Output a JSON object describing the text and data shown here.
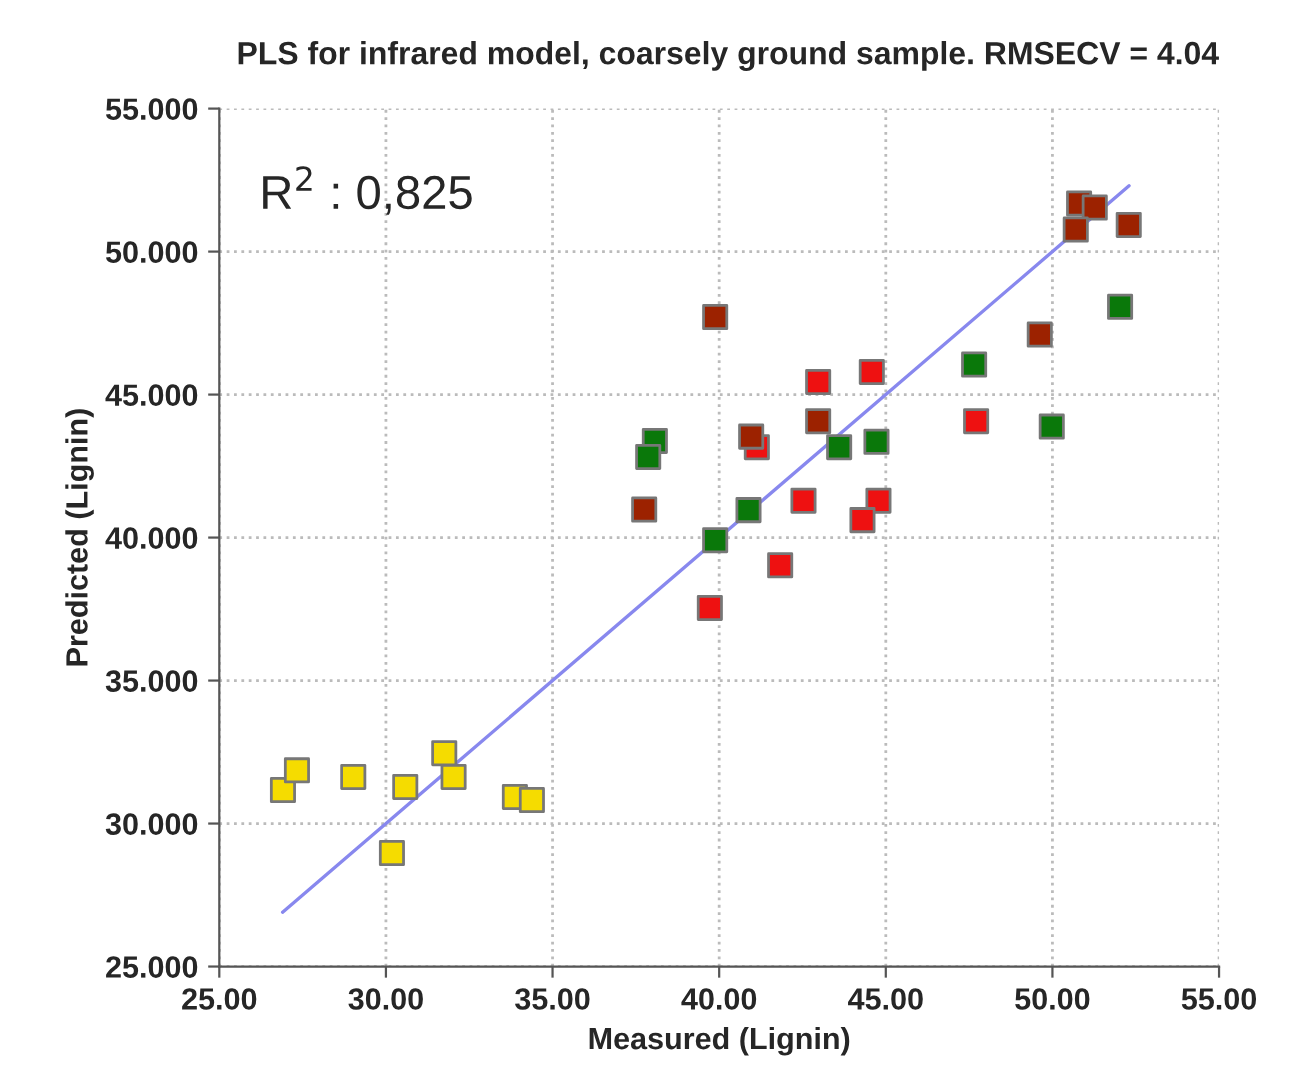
{
  "chart_data": {
    "type": "scatter",
    "title": "PLS for infrared model, coarsely ground sample. RMSECV = 4.04",
    "xlabel": "Measured (Lignin)",
    "ylabel": "Predicted (Lignin)",
    "annotations": [
      "R$^{2}$ : 0,825"
    ],
    "xlim": [
      25,
      55
    ],
    "ylim": [
      25,
      55
    ],
    "xticks": [
      {
        "value": 25,
        "label": "25.00"
      },
      {
        "value": 30,
        "label": "30.00"
      },
      {
        "value": 35,
        "label": "35.00"
      },
      {
        "value": 40,
        "label": "40.00"
      },
      {
        "value": 45,
        "label": "45.00"
      },
      {
        "value": 50,
        "label": "50.00"
      },
      {
        "value": 55,
        "label": "55.00"
      }
    ],
    "yticks": [
      {
        "value": 25,
        "label": "25.000"
      },
      {
        "value": 30,
        "label": "30.000"
      },
      {
        "value": 35,
        "label": "35.000"
      },
      {
        "value": 40,
        "label": "40.000"
      },
      {
        "value": 45,
        "label": "45.000"
      },
      {
        "value": 50,
        "label": "50.000"
      },
      {
        "value": 55,
        "label": "55.000"
      }
    ],
    "grid": true,
    "marker": "square",
    "series": [
      {
        "type": "line",
        "color": "#8888ee",
        "marker": "none",
        "x": [
          26.9,
          52.3
        ],
        "values": [
          26.9,
          52.3
        ]
      },
      {
        "color": "#f5dc00",
        "x": [
          26.91,
          27.33,
          29.02,
          30.58,
          30.18,
          31.75,
          32.03,
          33.87,
          34.38
        ],
        "values": [
          31.17,
          31.86,
          31.63,
          31.28,
          28.97,
          32.46,
          31.63,
          30.93,
          30.82
        ]
      },
      {
        "color": "#ee1111",
        "x": [
          39.72,
          44.58,
          42.97,
          47.71,
          41.13,
          42.53,
          44.78,
          44.3,
          41.83
        ],
        "values": [
          37.54,
          45.79,
          45.44,
          44.07,
          43.16,
          41.29,
          41.29,
          40.61,
          39.03
        ]
      },
      {
        "color": "#9c2200",
        "x": [
          39.88,
          37.75,
          50.8,
          51.27,
          50.7,
          52.29,
          49.62,
          42.97,
          40.96
        ],
        "values": [
          47.71,
          40.98,
          51.68,
          51.54,
          50.77,
          50.93,
          47.1,
          44.07,
          43.53
        ]
      },
      {
        "color": "#0a780a",
        "x": [
          38.07,
          37.87,
          39.88,
          52.03,
          47.65,
          49.98,
          43.6,
          44.72,
          40.88
        ],
        "values": [
          43.38,
          42.82,
          39.91,
          48.07,
          46.05,
          43.88,
          43.16,
          43.35,
          40.96
        ]
      }
    ]
  }
}
